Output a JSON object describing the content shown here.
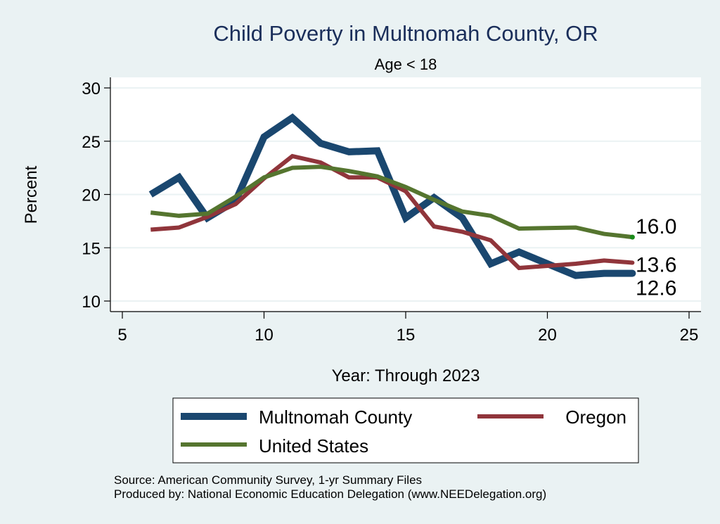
{
  "chart_data": {
    "type": "line",
    "title": "Child Poverty in Multnomah County, OR",
    "subtitle": "Age < 18",
    "xlabel": "Year: Through 2023",
    "ylabel": "Percent",
    "xlim": [
      5,
      25
    ],
    "ylim": [
      10,
      30
    ],
    "xticks": [
      5,
      10,
      15,
      20,
      25
    ],
    "yticks": [
      10,
      15,
      20,
      25,
      30
    ],
    "grid": true,
    "legend_position": "bottom",
    "series": [
      {
        "name": "Multnomah County",
        "color": "#1a476f",
        "x": [
          6,
          7,
          8,
          9,
          10,
          11,
          12,
          13,
          14,
          15,
          16,
          17,
          18,
          19,
          21,
          22,
          23
        ],
        "values": [
          20.0,
          21.6,
          17.8,
          19.4,
          25.4,
          27.2,
          24.8,
          24.0,
          24.1,
          17.8,
          19.7,
          17.8,
          13.5,
          14.6,
          12.4,
          12.6,
          12.6
        ],
        "end_label": "12.6"
      },
      {
        "name": "Oregon",
        "color": "#90353b",
        "x": [
          6,
          7,
          8,
          9,
          10,
          11,
          12,
          13,
          14,
          15,
          16,
          17,
          18,
          19,
          21,
          22,
          23
        ],
        "values": [
          16.7,
          16.9,
          17.9,
          19.1,
          21.5,
          23.6,
          23.0,
          21.6,
          21.6,
          20.3,
          17.0,
          16.5,
          15.7,
          13.1,
          13.5,
          13.8,
          13.6
        ],
        "end_label": "13.6"
      },
      {
        "name": "United States",
        "color": "#55752f",
        "x": [
          6,
          7,
          8,
          9,
          10,
          11,
          12,
          13,
          14,
          15,
          16,
          17,
          18,
          19,
          21,
          22,
          23
        ],
        "values": [
          18.3,
          18.0,
          18.2,
          19.8,
          21.6,
          22.5,
          22.6,
          22.2,
          21.7,
          20.7,
          19.5,
          18.4,
          18.0,
          16.8,
          16.9,
          16.3,
          16.0
        ],
        "end_label": "16.0"
      }
    ],
    "notes": [
      "Source: American Community Survey, 1-yr Summary Files",
      "Produced by: National Economic Education Delegation (www.NEEDelegation.org)"
    ]
  }
}
